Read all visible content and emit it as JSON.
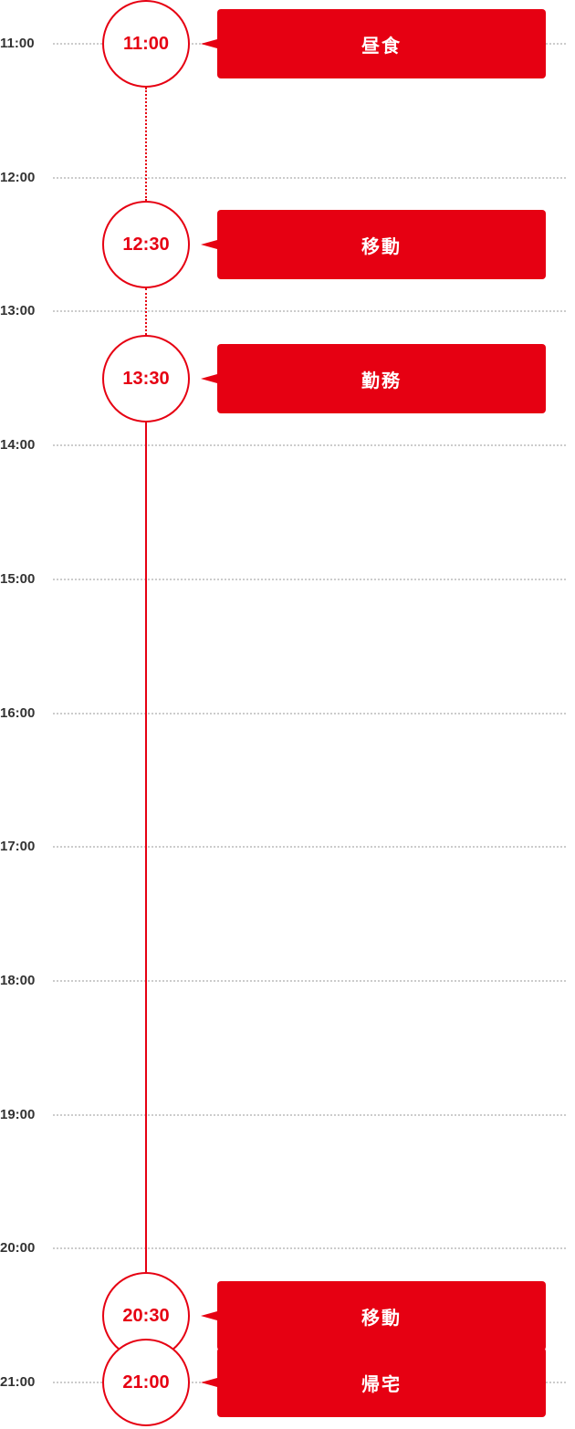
{
  "colors": {
    "accent": "#e60012",
    "grid": "#cccccc",
    "label": "#333333"
  },
  "hours": [
    "11:00",
    "12:00",
    "13:00",
    "14:00",
    "15:00",
    "16:00",
    "17:00",
    "18:00",
    "19:00",
    "20:00",
    "21:00"
  ],
  "events": [
    {
      "time": "11:00",
      "label": "昼食"
    },
    {
      "time": "12:30",
      "label": "移動"
    },
    {
      "time": "13:30",
      "label": "勤務"
    },
    {
      "time": "20:30",
      "label": "移動"
    },
    {
      "time": "21:00",
      "label": "帰宅"
    }
  ],
  "connectors": [
    {
      "from": "11:00",
      "to": "12:30",
      "style": "dotted"
    },
    {
      "from": "12:30",
      "to": "13:30",
      "style": "dotted"
    },
    {
      "from": "13:30",
      "to": "20:30",
      "style": "solid"
    },
    {
      "from": "20:30",
      "to": "21:00",
      "style": "dotted"
    }
  ]
}
